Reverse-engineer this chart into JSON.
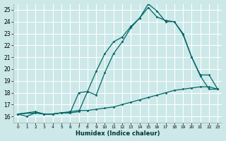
{
  "xlabel": "Humidex (Indice chaleur)",
  "bg_color": "#cce8e8",
  "grid_color": "#ffffff",
  "line_color": "#006666",
  "xlim": [
    -0.5,
    23.5
  ],
  "ylim": [
    15.5,
    25.5
  ],
  "xticks": [
    0,
    1,
    2,
    3,
    4,
    5,
    6,
    7,
    8,
    9,
    10,
    11,
    12,
    13,
    14,
    15,
    16,
    17,
    18,
    19,
    20,
    21,
    22,
    23
  ],
  "yticks": [
    16,
    17,
    18,
    19,
    20,
    21,
    22,
    23,
    24,
    25
  ],
  "line1_x": [
    0,
    1,
    2,
    3,
    4,
    5,
    6,
    7,
    8,
    9,
    10,
    11,
    12,
    13,
    14,
    15,
    16,
    17,
    18,
    19,
    20,
    21,
    22,
    23
  ],
  "line1_y": [
    16.2,
    16.0,
    16.3,
    16.2,
    16.2,
    16.3,
    16.4,
    16.5,
    16.5,
    16.6,
    16.7,
    16.8,
    17.0,
    17.2,
    17.4,
    17.6,
    17.8,
    18.0,
    18.2,
    18.3,
    18.4,
    18.5,
    18.5,
    18.3
  ],
  "line2_x": [
    0,
    2,
    3,
    4,
    5,
    6,
    7,
    8,
    9,
    10,
    11,
    12,
    13,
    14,
    15,
    16,
    17,
    18,
    19,
    20,
    21,
    22,
    23
  ],
  "line2_y": [
    16.2,
    16.3,
    16.2,
    16.2,
    16.3,
    16.3,
    18.0,
    18.1,
    19.8,
    21.3,
    22.3,
    22.7,
    23.6,
    24.3,
    25.2,
    24.4,
    24.1,
    24.0,
    23.0,
    21.0,
    19.5,
    19.5,
    18.3
  ],
  "line3_x": [
    0,
    2,
    3,
    4,
    5,
    6,
    7,
    8,
    9,
    10,
    11,
    12,
    13,
    14,
    15,
    16,
    17,
    18,
    19,
    20,
    21,
    22,
    23
  ],
  "line3_y": [
    16.2,
    16.4,
    16.2,
    16.2,
    16.3,
    16.3,
    16.4,
    18.1,
    17.8,
    19.7,
    21.3,
    22.3,
    23.5,
    24.3,
    25.5,
    24.9,
    24.0,
    24.0,
    22.9,
    21.0,
    19.4,
    18.3,
    18.3
  ]
}
